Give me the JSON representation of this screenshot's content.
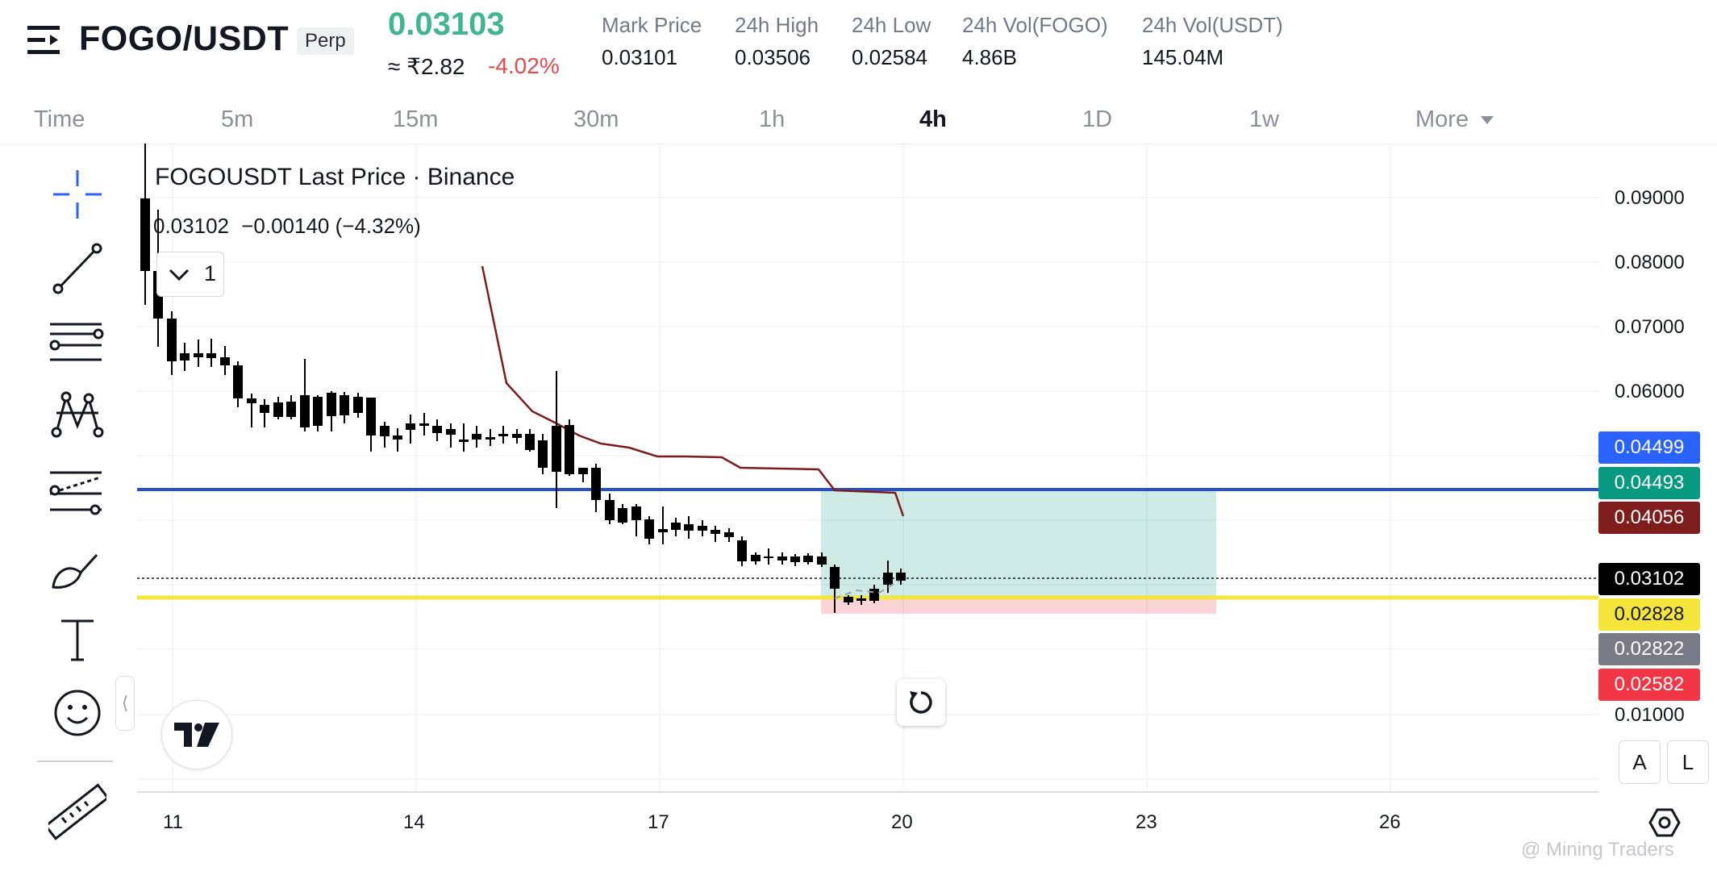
{
  "header": {
    "symbol": "FOGO/USDT",
    "contract_type": "Perp",
    "last_price": "0.03103",
    "inr_price": "≈ ₹2.82",
    "change_pct": "-4.02%",
    "stats": [
      {
        "label": "Mark Price",
        "value": "0.03101"
      },
      {
        "label": "24h High",
        "value": "0.03506"
      },
      {
        "label": "24h Low",
        "value": "0.02584"
      },
      {
        "label": "24h Vol(FOGO)",
        "value": "4.86B"
      },
      {
        "label": "24h Vol(USDT)",
        "value": "145.04M"
      }
    ],
    "colors": {
      "up": "#3fb68b",
      "down": "#e5484d"
    }
  },
  "timeframes": {
    "items": [
      "Time",
      "5m",
      "15m",
      "30m",
      "1h",
      "4h",
      "1D",
      "1w"
    ],
    "active": "4h",
    "more_label": "More"
  },
  "toolbar": {
    "icons": [
      "crosshair-icon",
      "trend-line-icon",
      "horizontal-lines-icon",
      "pattern-icon",
      "forecast-icon",
      "brush-icon",
      "text-icon",
      "emoji-icon",
      "ruler-icon"
    ],
    "collapse_glyph": "⟨"
  },
  "chart": {
    "legend_title": "FOGOUSDT Last Price · Binance",
    "legend_value": "0.03102",
    "legend_change": "−0.00140 (−4.32%)",
    "indicator_count": "1",
    "price_axis": [
      "0.09000",
      "0.08000",
      "0.07000",
      "0.06000",
      "0.01000"
    ],
    "date_axis": [
      "11",
      "14",
      "17",
      "20",
      "23",
      "26"
    ],
    "price_tags": [
      {
        "value": "0.04499",
        "color": "#2962ff"
      },
      {
        "value": "0.04493",
        "color": "#089981"
      },
      {
        "value": "0.04056",
        "color": "#7f1d1d"
      },
      {
        "value": "0.03102",
        "color": "#000000"
      },
      {
        "value": "0.02828",
        "color": "#f5e43a"
      },
      {
        "value": "0.02822",
        "color": "#787b86"
      },
      {
        "value": "0.02582",
        "color": "#f23645"
      }
    ],
    "scale_buttons": [
      "A",
      "L"
    ],
    "watermark": "@ Mining Traders"
  }
}
